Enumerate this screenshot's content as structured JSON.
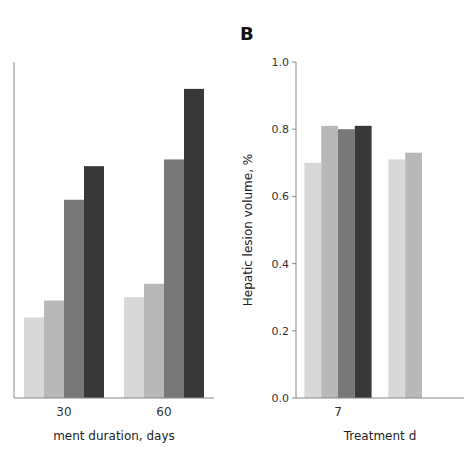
{
  "chart_data": [
    {
      "type": "bar",
      "categories": [
        "30",
        "60"
      ],
      "series": [
        {
          "color": "#d8d8d8",
          "values": [
            0.24,
            0.3
          ]
        },
        {
          "color": "#b8b8b8",
          "values": [
            0.29,
            0.34
          ]
        },
        {
          "color": "#787878",
          "values": [
            0.59,
            0.71
          ]
        },
        {
          "color": "#383838",
          "values": [
            0.69,
            0.92
          ]
        }
      ],
      "ylim": [
        0.0,
        1.0
      ],
      "x_label": "ment duration, days",
      "tick_labels": "x"
    },
    {
      "type": "bar",
      "title": "B",
      "categories": [
        "7",
        null
      ],
      "series": [
        {
          "color": "#d8d8d8",
          "values": [
            0.7,
            0.71
          ]
        },
        {
          "color": "#b8b8b8",
          "values": [
            0.81,
            0.73
          ]
        },
        {
          "color": "#787878",
          "values": [
            0.8,
            null
          ]
        },
        {
          "color": "#383838",
          "values": [
            0.81,
            null
          ]
        }
      ],
      "ylim": [
        0.0,
        1.0
      ],
      "yticks": [
        {
          "value": 0.0,
          "label": "0.0"
        },
        {
          "value": 0.2,
          "label": "0.2"
        },
        {
          "value": 0.4,
          "label": "0.4"
        },
        {
          "value": 0.6,
          "label": "0.6"
        },
        {
          "value": 0.8,
          "label": "0.8"
        },
        {
          "value": 1.0,
          "label": "1.0"
        }
      ],
      "x_label": "Treatment d",
      "y_label": "Hepatic lesion volume, %"
    }
  ]
}
